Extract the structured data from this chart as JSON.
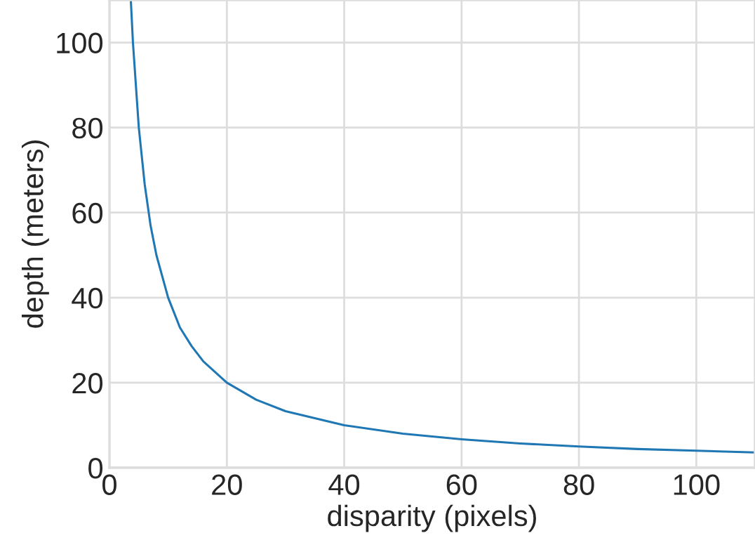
{
  "chart_data": {
    "type": "line",
    "xlabel": "disparity (pixels)",
    "ylabel": "depth (meters)",
    "series": [
      {
        "color": "#1f77b4",
        "x": [
          3.64,
          4,
          5,
          6,
          7,
          8,
          10,
          12,
          14,
          16,
          20,
          25,
          30,
          40,
          50,
          60,
          70,
          80,
          90,
          100,
          110
        ],
        "values": [
          110,
          100,
          80,
          66.7,
          57,
          50,
          40,
          33,
          28.6,
          25,
          20,
          16,
          13.3,
          10,
          8,
          6.7,
          5.7,
          5,
          4.4,
          4,
          3.6
        ]
      }
    ],
    "xlim": [
      0,
      110
    ],
    "ylim": [
      0,
      110
    ],
    "xticks": [
      0,
      20,
      40,
      60,
      80,
      100
    ],
    "yticks": [
      0,
      20,
      40,
      60,
      80,
      100
    ],
    "grid": true
  }
}
